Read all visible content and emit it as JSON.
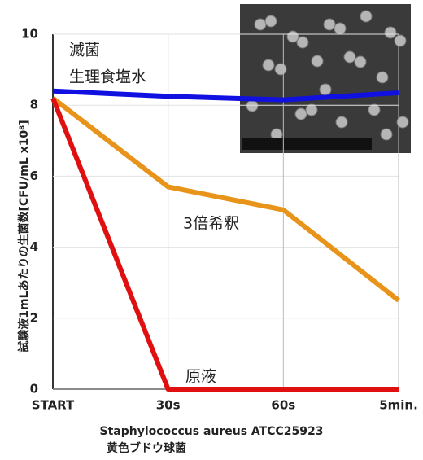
{
  "chart_data": {
    "type": "line",
    "categories": [
      "START",
      "30s",
      "60s",
      "5min."
    ],
    "ylim": [
      0,
      10
    ],
    "yticks": [
      0,
      2,
      4,
      6,
      8,
      10
    ],
    "grid": true,
    "ylabel": "試験液1mLあたりの生菌数[CFU/mL x10⁸]",
    "xlabel": "Staphylococcus aureus ATCC25923",
    "xlabel_sub": "黄色ブドウ球菌",
    "annotations": [
      "滅菌",
      "生理食塩水",
      "3倍希釈",
      "原液"
    ],
    "series": [
      {
        "color": "#e8941a",
        "values": [
          8.2,
          5.7,
          5.05,
          2.5
        ]
      },
      {
        "color": "#e01010",
        "values": [
          8.2,
          0,
          0,
          0
        ]
      },
      {
        "color": "#1010e0",
        "values": [
          8.4,
          8.25,
          8.15,
          8.35
        ]
      }
    ]
  }
}
